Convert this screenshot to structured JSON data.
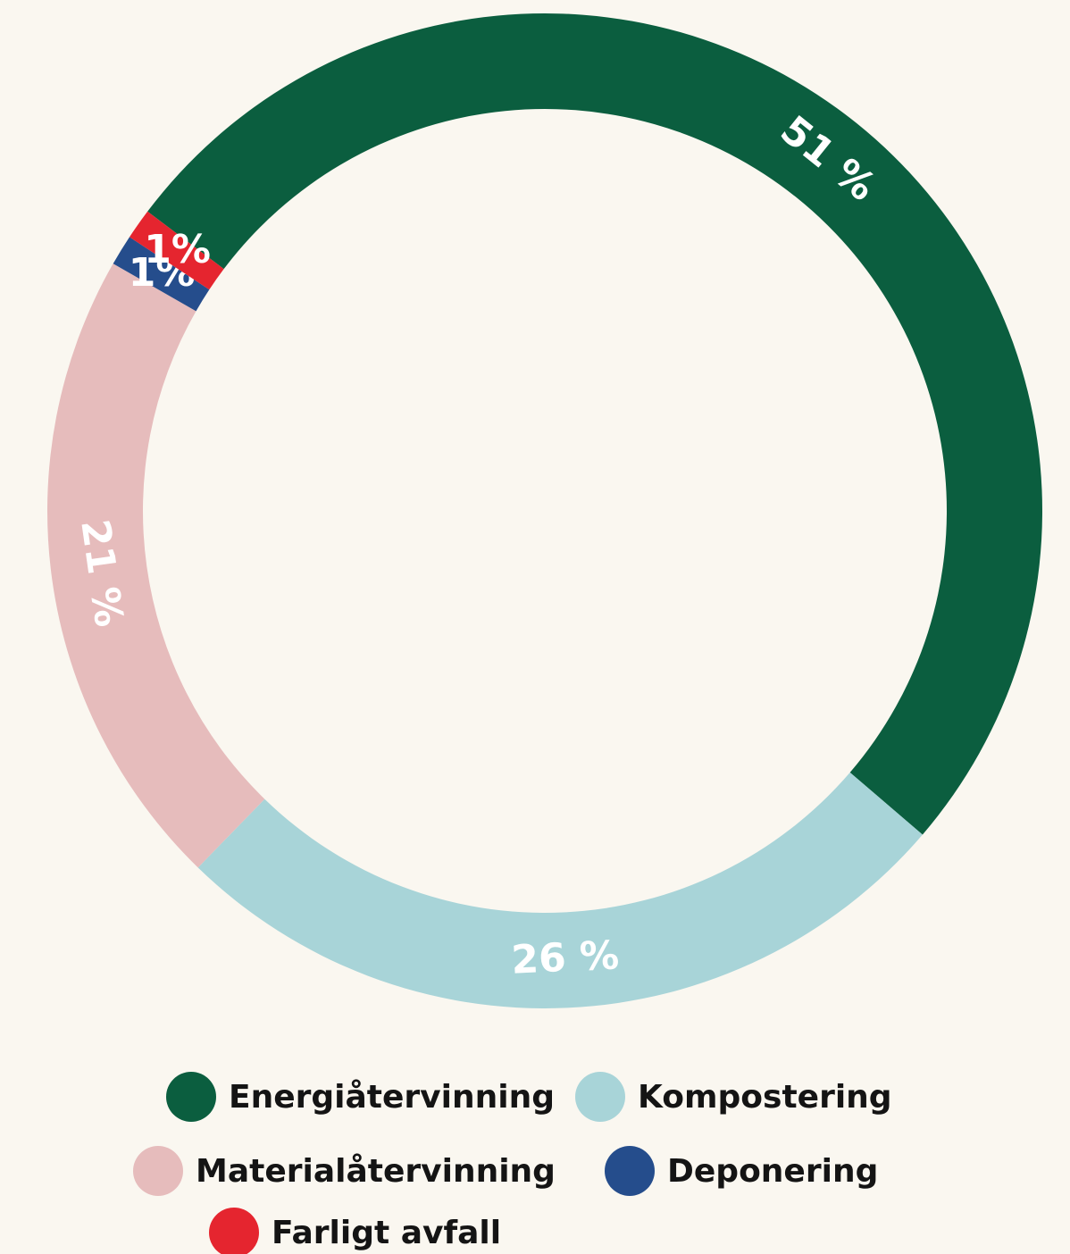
{
  "chart_data": {
    "type": "donut",
    "categories": [
      "Energiåtervinning",
      "Kompostering",
      "Materialåtervinning",
      "Deponering",
      "Farligt avfall"
    ],
    "values": [
      51,
      26,
      21,
      1,
      1
    ],
    "value_labels": [
      "51 %",
      "26 %",
      "21 %",
      "1%",
      "1%"
    ],
    "colors": [
      "#0b5e3f",
      "#a8d4d8",
      "#e6bcbc",
      "#254d8c",
      "#e5252f"
    ]
  }
}
